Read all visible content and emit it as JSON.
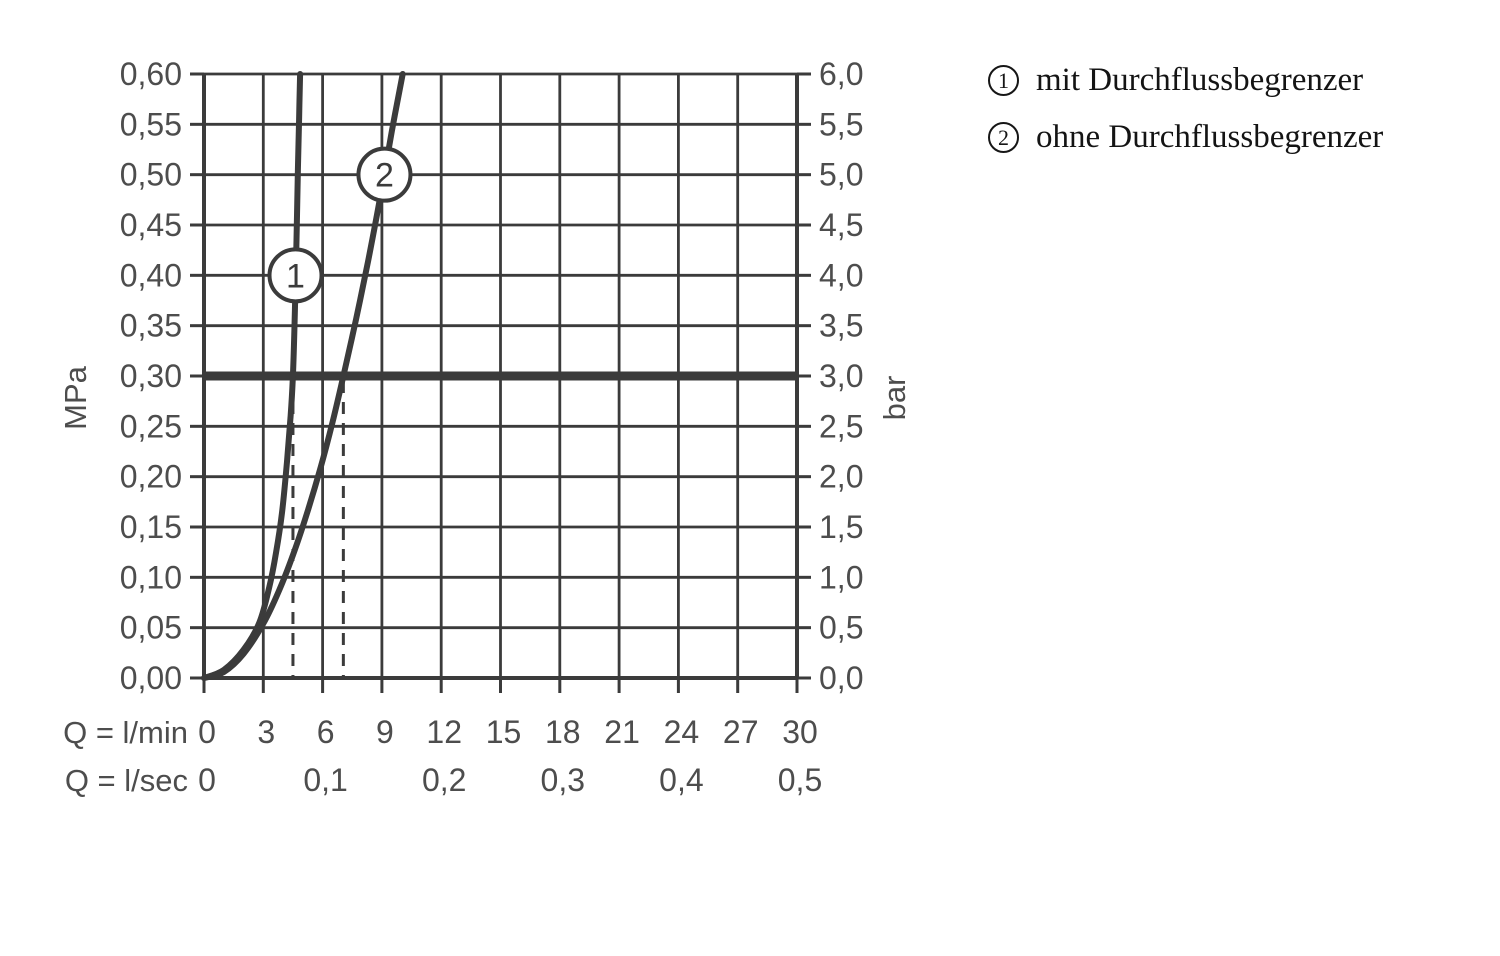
{
  "chart_data": {
    "type": "line",
    "grid": true,
    "x_axis": {
      "range": [
        0,
        30
      ],
      "gridline_step": 3,
      "primary": {
        "label": "Q = l/min",
        "ticks": [
          {
            "x": 0,
            "label": "0"
          },
          {
            "x": 3,
            "label": "3"
          },
          {
            "x": 6,
            "label": "6"
          },
          {
            "x": 9,
            "label": "9"
          },
          {
            "x": 12,
            "label": "12"
          },
          {
            "x": 15,
            "label": "15"
          },
          {
            "x": 18,
            "label": "18"
          },
          {
            "x": 21,
            "label": "21"
          },
          {
            "x": 24,
            "label": "24"
          },
          {
            "x": 27,
            "label": "27"
          },
          {
            "x": 30,
            "label": "30"
          }
        ]
      },
      "secondary": {
        "label": "Q = l/sec",
        "ticks": [
          {
            "x": 0,
            "label": "0"
          },
          {
            "x": 6,
            "label": "0,1"
          },
          {
            "x": 12,
            "label": "0,2"
          },
          {
            "x": 18,
            "label": "0,3"
          },
          {
            "x": 24,
            "label": "0,4"
          },
          {
            "x": 30,
            "label": "0,5"
          }
        ]
      }
    },
    "y_axis_left": {
      "label": "MPa",
      "range": [
        0,
        0.6
      ],
      "step": 0.05,
      "ticks": [
        "0,60",
        "0,55",
        "0,50",
        "0,45",
        "0,40",
        "0,35",
        "0,30",
        "0,25",
        "0,20",
        "0,15",
        "0,10",
        "0,05",
        "0,00"
      ]
    },
    "y_axis_right": {
      "label": "bar",
      "range": [
        0,
        6
      ],
      "step": 0.5,
      "ticks": [
        "6,0",
        "5,5",
        "5,0",
        "4,5",
        "4,0",
        "3,5",
        "3,0",
        "2,5",
        "2,0",
        "1,5",
        "1,0",
        "0,5",
        "0,0"
      ]
    },
    "reference_line": {
      "y_mpa": 0.3,
      "y_bar": 3.0
    },
    "dashed_lines_x_lmin": [
      4.5,
      7.05
    ],
    "series": [
      {
        "id": "1",
        "name": "mit Durchflussbegrenzer",
        "marker": {
          "x": 4.63,
          "y": 0.4,
          "label": "1"
        },
        "points": [
          [
            0,
            0
          ],
          [
            1.0,
            0.008
          ],
          [
            2.0,
            0.028
          ],
          [
            2.8,
            0.055
          ],
          [
            3.3,
            0.09
          ],
          [
            3.65,
            0.125
          ],
          [
            3.95,
            0.165
          ],
          [
            4.2,
            0.215
          ],
          [
            4.38,
            0.26
          ],
          [
            4.5,
            0.3
          ],
          [
            4.6,
            0.365
          ],
          [
            4.68,
            0.435
          ],
          [
            4.75,
            0.505
          ],
          [
            4.81,
            0.555
          ],
          [
            4.86,
            0.6
          ]
        ]
      },
      {
        "id": "2",
        "name": "ohne Durchflussbegrenzer",
        "marker": {
          "x": 9.13,
          "y": 0.5,
          "label": "2"
        },
        "points": [
          [
            0,
            0
          ],
          [
            1.0,
            0.006
          ],
          [
            2.0,
            0.024
          ],
          [
            3.0,
            0.054
          ],
          [
            3.8,
            0.087
          ],
          [
            4.5,
            0.122
          ],
          [
            5.2,
            0.163
          ],
          [
            5.9,
            0.209
          ],
          [
            6.5,
            0.254
          ],
          [
            7.05,
            0.3
          ],
          [
            7.7,
            0.357
          ],
          [
            8.3,
            0.414
          ],
          [
            8.9,
            0.476
          ],
          [
            9.5,
            0.543
          ],
          [
            10.05,
            0.6
          ]
        ]
      }
    ]
  },
  "legend": {
    "items": [
      {
        "symbol": "1",
        "label": "mit Durchflussbegrenzer"
      },
      {
        "symbol": "2",
        "label": "ohne Durchflussbegrenzer"
      }
    ]
  },
  "colors": {
    "ink": "#3b3b3b",
    "tick_text": "#4d4d4d",
    "legend_text": "#141414",
    "background": "#ffffff",
    "marker_fill": "#ffffff"
  }
}
